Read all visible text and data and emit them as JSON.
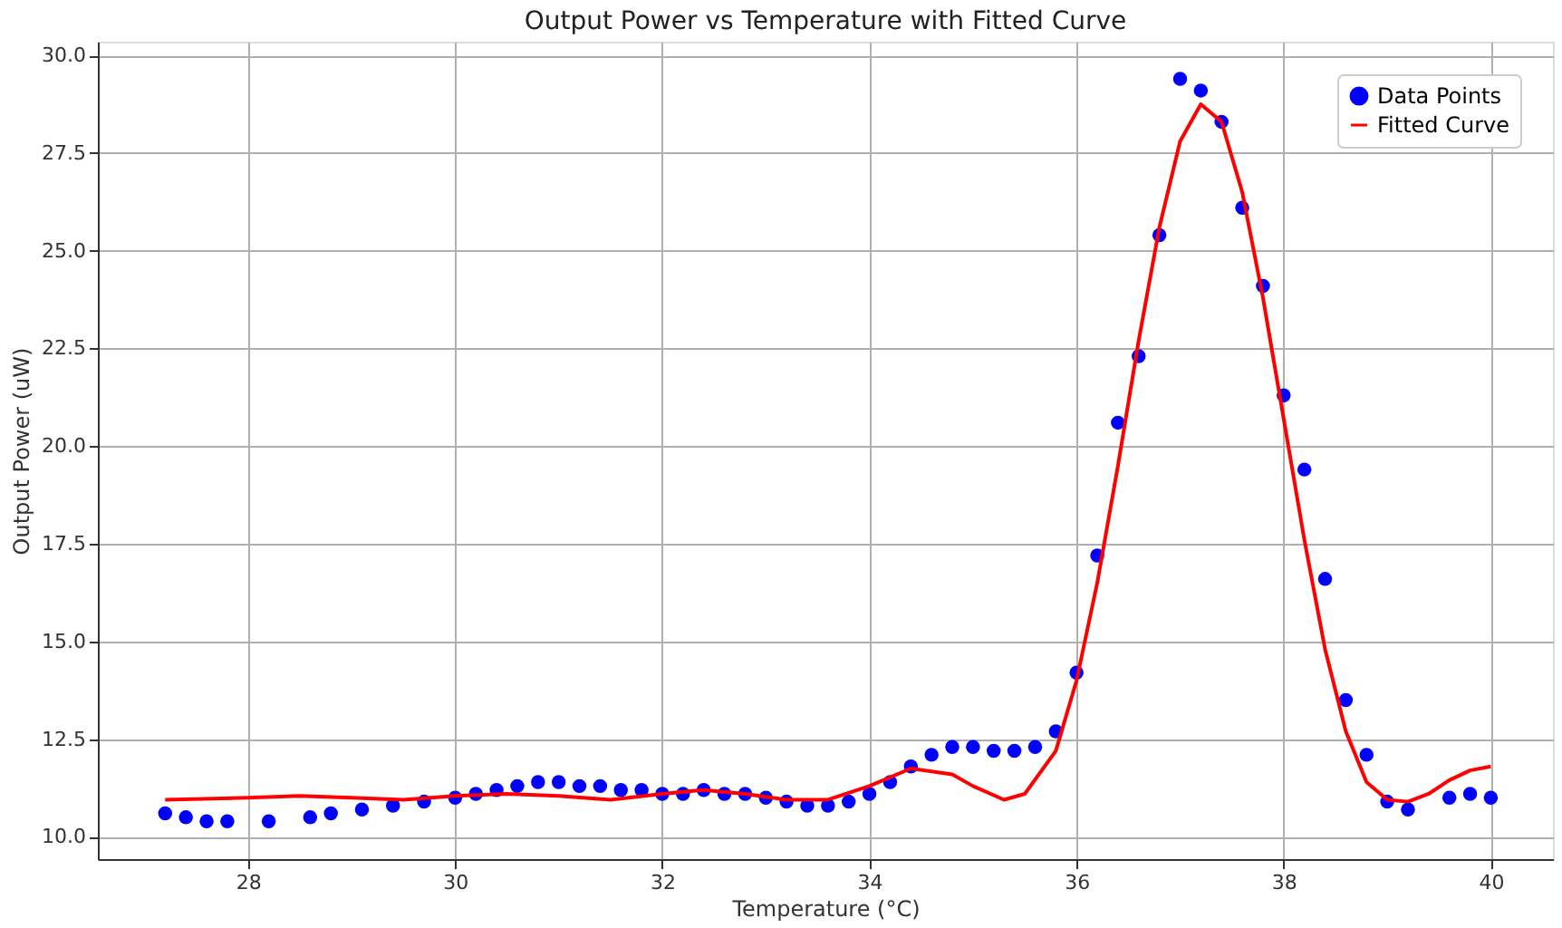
{
  "chart_data": {
    "type": "scatter",
    "title": "Output Power vs Temperature with Fitted Curve",
    "xlabel": "Temperature (°C)",
    "ylabel": "Output Power (uW)",
    "xlim": [
      26.55,
      40.6
    ],
    "ylim": [
      9.43,
      30.35
    ],
    "xticks": [
      28,
      30,
      32,
      34,
      36,
      38,
      40
    ],
    "yticks": [
      {
        "value": 10,
        "label": "10.0"
      },
      {
        "value": 12.5,
        "label": "12.5"
      },
      {
        "value": 15,
        "label": "15.0"
      },
      {
        "value": 17.5,
        "label": "17.5"
      },
      {
        "value": 20,
        "label": "20.0"
      },
      {
        "value": 22.5,
        "label": "22.5"
      },
      {
        "value": 25,
        "label": "25.0"
      },
      {
        "value": 27.5,
        "label": "27.5"
      },
      {
        "value": 30,
        "label": "30.0"
      }
    ],
    "grid": true,
    "legend": "top right",
    "series": [
      {
        "name": "Data Points",
        "marker": "circle",
        "color": "#0000ff",
        "x": [
          27.2,
          27.4,
          27.6,
          27.8,
          28.2,
          28.6,
          28.8,
          29.1,
          29.4,
          29.7,
          30.0,
          30.2,
          30.4,
          30.6,
          30.8,
          31.0,
          31.2,
          31.4,
          31.6,
          31.8,
          32.0,
          32.2,
          32.4,
          32.6,
          32.8,
          33.0,
          33.2,
          33.4,
          33.6,
          33.8,
          34.0,
          34.2,
          34.4,
          34.6,
          34.8,
          35.0,
          35.2,
          35.4,
          35.6,
          35.8,
          36.0,
          36.2,
          36.4,
          36.6,
          36.8,
          37.0,
          37.2,
          37.4,
          37.6,
          37.8,
          38.0,
          38.2,
          38.4,
          38.6,
          38.8,
          39.0,
          39.2,
          39.6,
          39.8,
          40.0
        ],
        "values": [
          10.6,
          10.5,
          10.4,
          10.4,
          10.4,
          10.5,
          10.6,
          10.7,
          10.8,
          10.9,
          11.0,
          11.1,
          11.2,
          11.3,
          11.4,
          11.4,
          11.3,
          11.3,
          11.2,
          11.2,
          11.1,
          11.1,
          11.2,
          11.1,
          11.1,
          11.0,
          10.9,
          10.8,
          10.8,
          10.9,
          11.1,
          11.4,
          11.8,
          12.1,
          12.3,
          12.3,
          12.2,
          12.2,
          12.3,
          12.7,
          14.2,
          17.2,
          20.6,
          22.3,
          25.4,
          29.4,
          29.1,
          28.3,
          26.1,
          24.1,
          21.3,
          19.4,
          16.6,
          13.5,
          12.1,
          10.9,
          10.7,
          11.0,
          11.1,
          11.0
        ]
      },
      {
        "name": "Fitted Curve",
        "type": "line",
        "line_style": "solid",
        "color": "#ff0000",
        "x": [
          27.2,
          28.0,
          28.5,
          29.0,
          29.5,
          30.0,
          30.5,
          31.0,
          31.5,
          32.0,
          32.4,
          32.8,
          33.2,
          33.6,
          34.0,
          34.4,
          34.8,
          35.0,
          35.3,
          35.5,
          35.8,
          36.0,
          36.2,
          36.4,
          36.6,
          36.8,
          37.0,
          37.2,
          37.4,
          37.6,
          37.8,
          38.0,
          38.2,
          38.4,
          38.6,
          38.8,
          39.0,
          39.2,
          39.4,
          39.6,
          39.8,
          40.0
        ],
        "values": [
          10.95,
          11.0,
          11.05,
          11.0,
          10.95,
          11.05,
          11.1,
          11.05,
          10.95,
          11.1,
          11.2,
          11.1,
          10.95,
          10.95,
          11.3,
          11.75,
          11.6,
          11.3,
          10.95,
          11.1,
          12.2,
          14.0,
          16.5,
          19.5,
          22.7,
          25.6,
          27.8,
          28.75,
          28.3,
          26.5,
          23.8,
          20.7,
          17.6,
          14.8,
          12.7,
          11.4,
          10.95,
          10.9,
          11.1,
          11.45,
          11.7,
          11.8
        ]
      }
    ]
  }
}
